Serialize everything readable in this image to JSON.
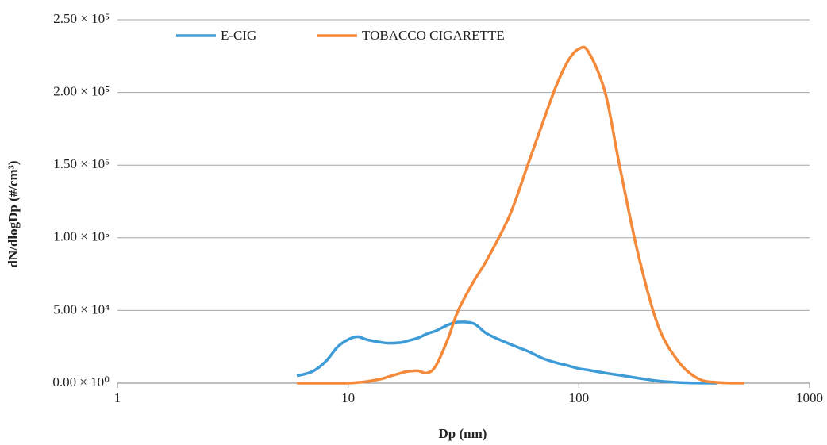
{
  "chart_data": {
    "type": "line",
    "xlabel": "Dp (nm)",
    "ylabel": "dN/dlogDp (#/cm³)",
    "xscale": "log",
    "x": [
      6,
      7,
      8,
      9,
      10,
      11,
      12,
      14,
      15,
      17,
      18,
      20,
      22,
      24,
      27,
      30,
      35,
      40,
      50,
      60,
      70,
      80,
      90,
      100,
      110,
      130,
      150,
      180,
      220,
      270,
      330,
      400,
      520
    ],
    "series": [
      {
        "name": "E-CIG",
        "color": "#3d9bd8",
        "values": [
          5000,
          8000,
          15000,
          25000,
          30000,
          32000,
          30000,
          28000,
          27500,
          28000,
          29000,
          31000,
          34000,
          36000,
          40000,
          42000,
          41000,
          34000,
          27000,
          22000,
          17000,
          14000,
          12000,
          10000,
          9000,
          7000,
          5500,
          3500,
          1500,
          500,
          100,
          0,
          null
        ]
      },
      {
        "name": "TOBACCO CIGARETTE",
        "color": "#f5893a",
        "values": [
          0,
          0,
          0,
          0,
          0,
          500,
          1000,
          3000,
          4500,
          7000,
          8000,
          8500,
          7000,
          12000,
          30000,
          50000,
          70000,
          85000,
          115000,
          150000,
          180000,
          205000,
          222000,
          230000,
          228000,
          200000,
          150000,
          90000,
          40000,
          15000,
          3000,
          500,
          0
        ]
      }
    ],
    "xlim": [
      1,
      1000
    ],
    "xticks": [
      1,
      10,
      100,
      1000
    ],
    "ylim": [
      0,
      250000
    ],
    "yticks": [
      {
        "value": 0,
        "label": "0.00 × 10⁰"
      },
      {
        "value": 50000,
        "label": "5.00 × 10⁴"
      },
      {
        "value": 100000,
        "label": "1.00 × 10⁵"
      },
      {
        "value": 150000,
        "label": "1.50 × 10⁵"
      },
      {
        "value": 200000,
        "label": "2.00 × 10⁵"
      },
      {
        "value": 250000,
        "label": "2.50 × 10⁵"
      }
    ],
    "grid": true,
    "legend": "top-left"
  }
}
